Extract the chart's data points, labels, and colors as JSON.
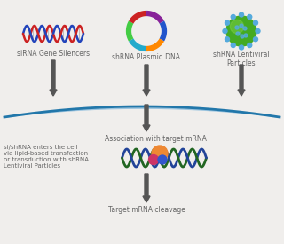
{
  "bg_color": "#f0eeec",
  "labels": {
    "sirna": "siRNA Gene Silencers",
    "shrna_plasmid": "shRNA Plasmid DNA",
    "shrna_lenti": "shRNA Lentiviral\nParticles",
    "association": "Association with target mRNA",
    "cleavage": "Target mRNA cleavage",
    "entry": "si/shRNA enters the cell\nvia lipid-based transfection\nor transduction with shRNA\nLentiviral Particles"
  },
  "arrow_color": "#555555",
  "arc_color_dark": "#2277aa",
  "arc_color_light": "#88bbdd",
  "dna_red": "#cc2222",
  "dna_blue": "#2244bb",
  "plasmid_colors": [
    "#882299",
    "#2255cc",
    "#ff8800",
    "#22aacc",
    "#44cc44",
    "#cc2222"
  ],
  "virus_green": "#44aa22",
  "virus_highlight": "#77cc44",
  "virus_dot": "#55aadd",
  "mrna_green": "#226622",
  "mrna_blue": "#224499",
  "risc_orange": "#ee8833",
  "risc_pink": "#cc3366",
  "risc_blue": "#3355cc",
  "text_color": "#666666",
  "font_size": 5.5,
  "font_size_small": 5.0
}
